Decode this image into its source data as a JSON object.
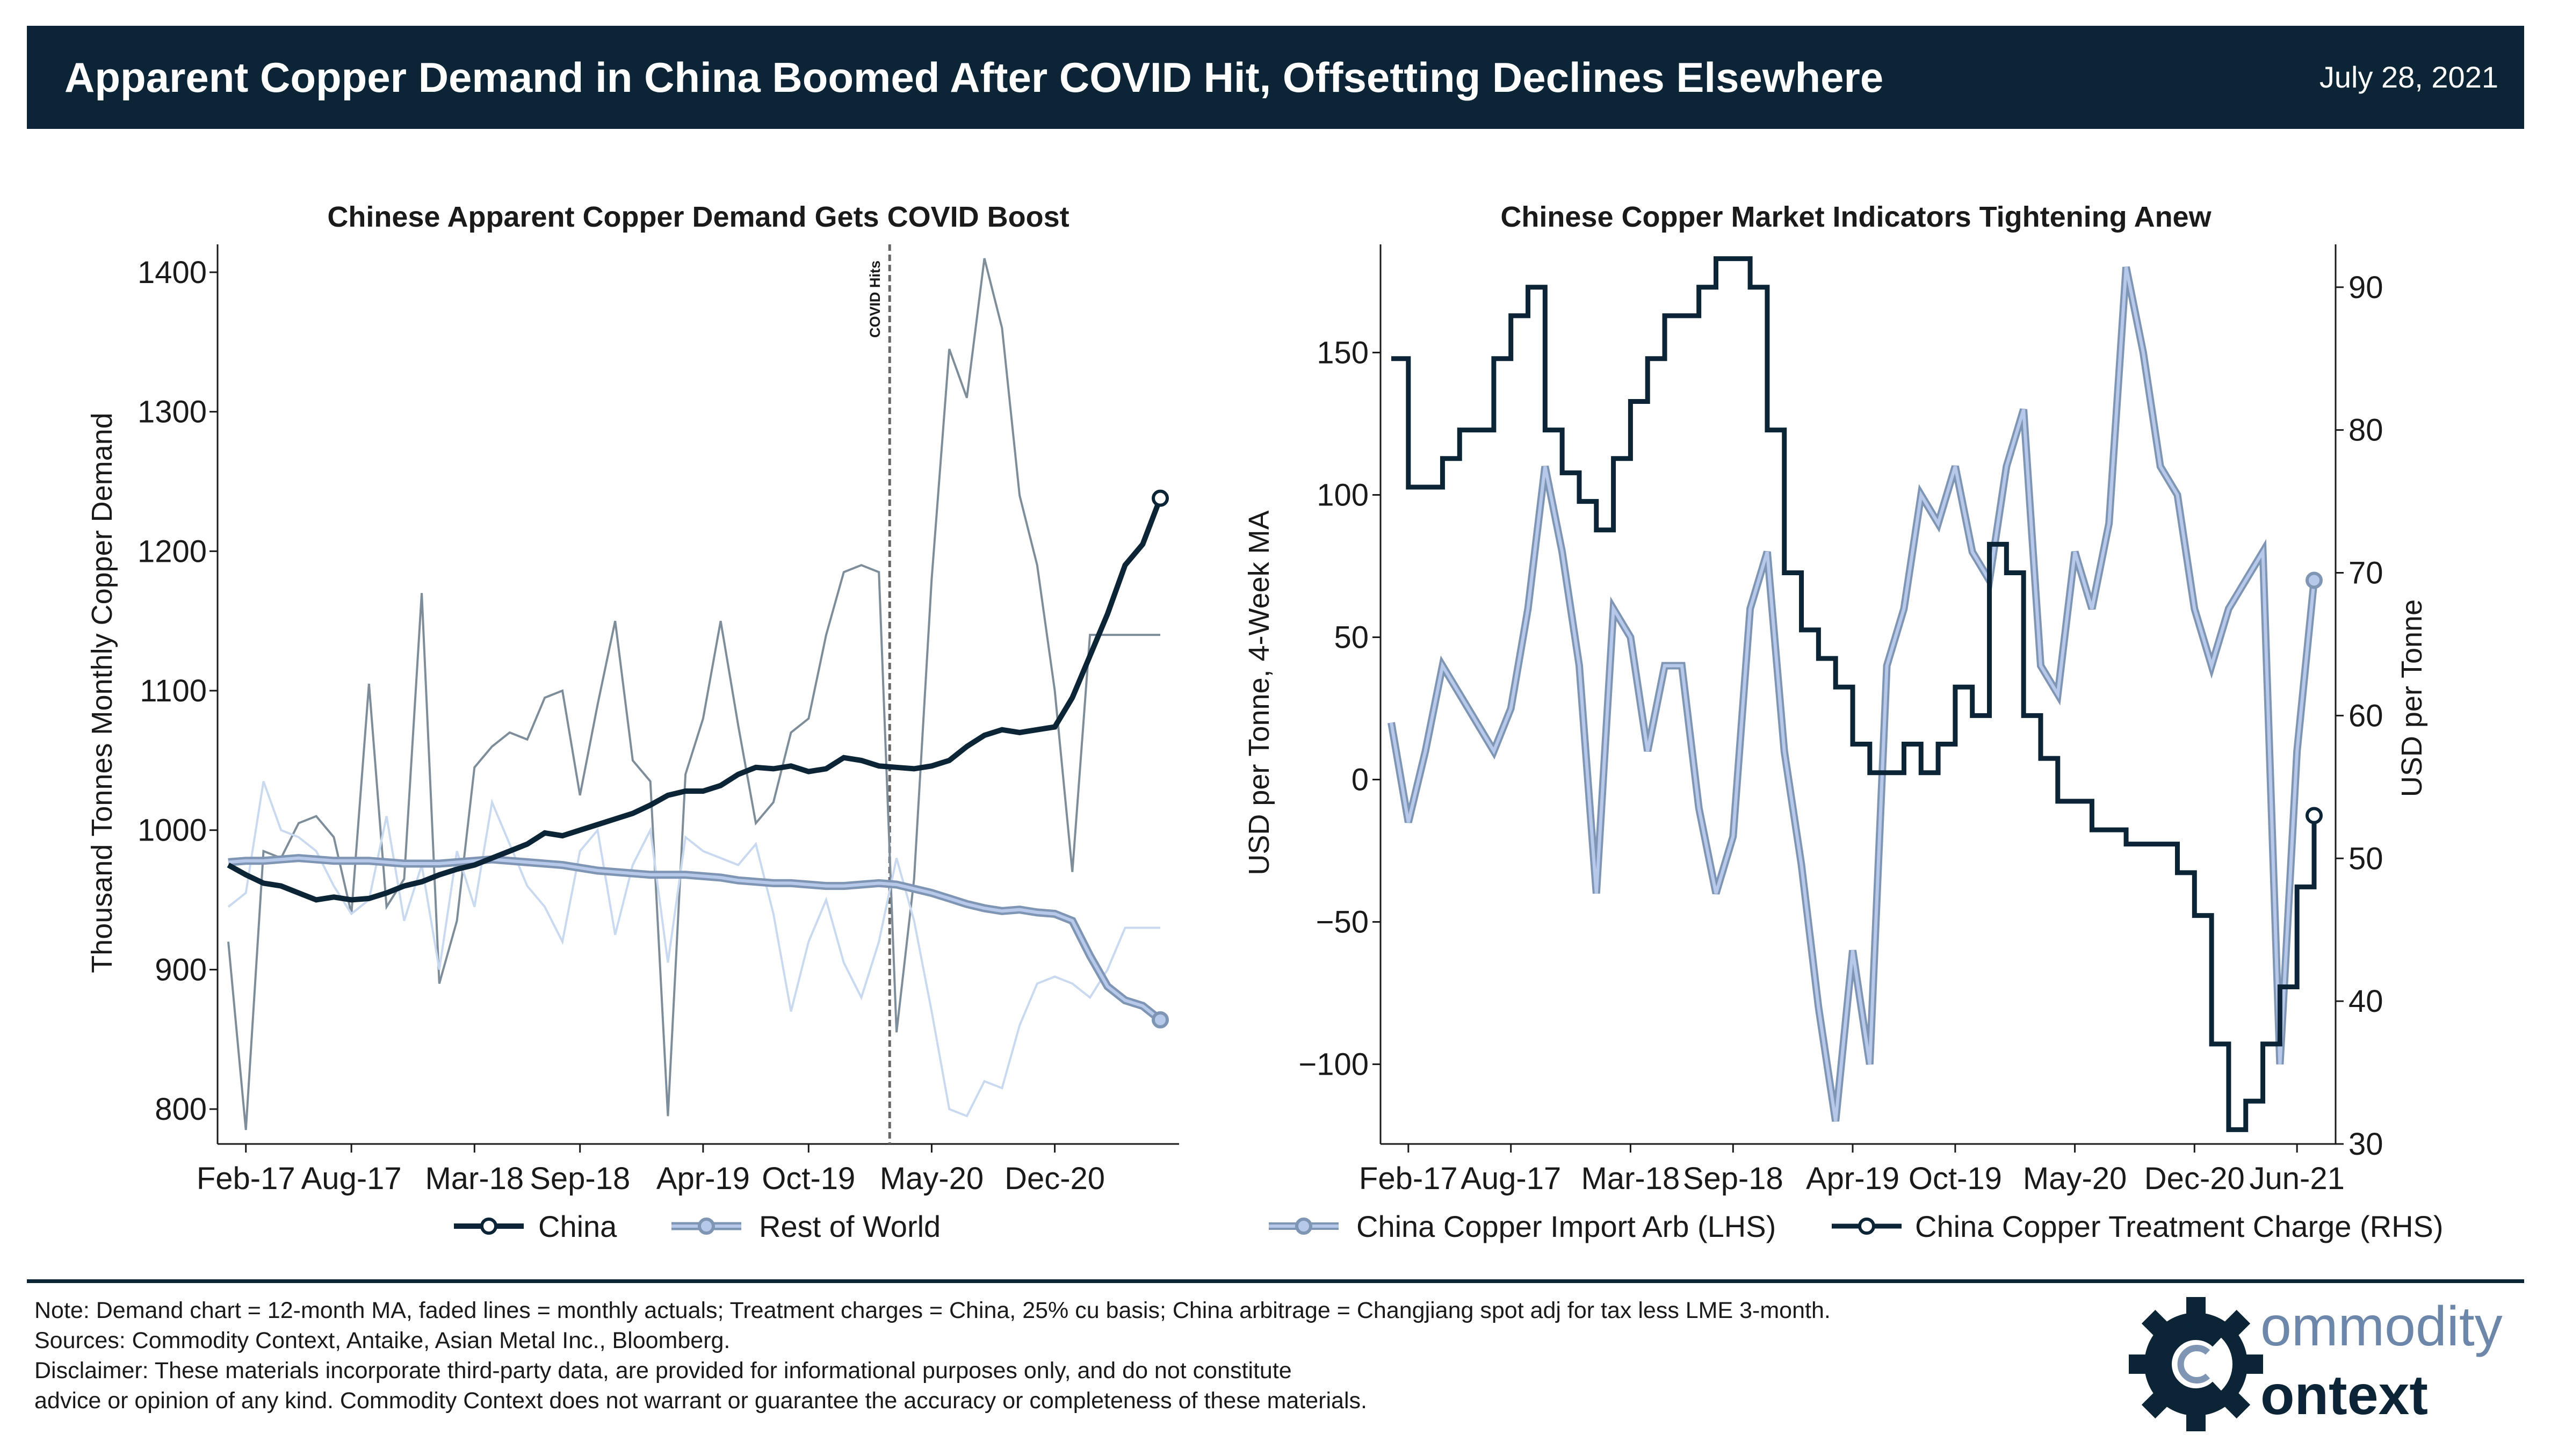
{
  "header": {
    "title": "Apparent Copper Demand in China Boomed After COVID Hit, Offsetting Declines Elsewhere",
    "date": "July 28, 2021"
  },
  "colors": {
    "banner": "#0b2536",
    "china": "#0b2536",
    "row": "#7f95b4",
    "row_fill": "#b7c9ea",
    "china_monthly": "#7d8d99",
    "row_monthly": "#c9d9f0"
  },
  "chart_data": [
    {
      "type": "line",
      "title": "Chinese Apparent Copper Demand Gets COVID Boost",
      "ylabel": "Thousand Tonnes Monthly Copper Demand",
      "xlabel": "",
      "ylim": [
        775,
        1420
      ],
      "yticks": [
        800,
        900,
        1000,
        1100,
        1200,
        1300,
        1400
      ],
      "xtick_labels": [
        "Feb-17",
        "Aug-17",
        "Mar-18",
        "Sep-18",
        "Apr-19",
        "Oct-19",
        "May-20",
        "Dec-20"
      ],
      "x_start": "2017-01",
      "n_months": 54,
      "annotation": {
        "label": "COVID Hits",
        "x": "2020-02"
      },
      "legend": "bottom",
      "series": [
        {
          "name": "China",
          "style": "12-month MA",
          "values": [
            975,
            968,
            962,
            960,
            955,
            950,
            952,
            950,
            951,
            955,
            960,
            963,
            968,
            972,
            975,
            980,
            985,
            990,
            998,
            996,
            1000,
            1004,
            1008,
            1012,
            1018,
            1025,
            1028,
            1028,
            1032,
            1040,
            1045,
            1044,
            1046,
            1042,
            1044,
            1052,
            1050,
            1046,
            1045,
            1044,
            1046,
            1050,
            1060,
            1068,
            1072,
            1070,
            1072,
            1074,
            1095,
            1125,
            1155,
            1190,
            1205,
            1238
          ]
        },
        {
          "name": "Rest of World",
          "style": "12-month MA",
          "values": [
            977,
            978,
            978,
            979,
            980,
            979,
            978,
            978,
            978,
            977,
            976,
            976,
            976,
            977,
            978,
            979,
            978,
            977,
            976,
            975,
            973,
            971,
            970,
            969,
            968,
            968,
            968,
            967,
            966,
            964,
            963,
            962,
            962,
            961,
            960,
            960,
            961,
            962,
            961,
            958,
            955,
            951,
            947,
            944,
            942,
            943,
            941,
            940,
            935,
            910,
            888,
            878,
            874,
            864
          ]
        },
        {
          "name": "",
          "style": "China monthly actuals",
          "values": [
            920,
            785,
            985,
            980,
            1005,
            1010,
            995,
            940,
            1105,
            945,
            965,
            1170,
            890,
            935,
            1045,
            1060,
            1070,
            1065,
            1095,
            1100,
            1025,
            1090,
            1150,
            1050,
            1035,
            795,
            1040,
            1080,
            1150,
            1075,
            1005,
            1020,
            1070,
            1080,
            1140,
            1185,
            1190,
            1185,
            855,
            965,
            1180,
            1345,
            1310,
            1410,
            1360,
            1240,
            1190,
            1100,
            970,
            1140,
            1140,
            1140,
            1140,
            1140
          ]
        },
        {
          "name": "",
          "style": "Rest of World monthly actuals",
          "values": [
            945,
            955,
            1035,
            1000,
            995,
            985,
            960,
            940,
            950,
            1010,
            935,
            975,
            900,
            985,
            945,
            1020,
            990,
            960,
            945,
            920,
            985,
            1000,
            925,
            975,
            1000,
            905,
            995,
            985,
            980,
            975,
            990,
            940,
            870,
            920,
            950,
            905,
            880,
            920,
            980,
            935,
            870,
            800,
            795,
            820,
            815,
            860,
            890,
            895,
            890,
            880,
            900,
            930,
            930,
            930
          ]
        }
      ]
    },
    {
      "type": "line",
      "title": "Chinese Copper Market Indicators Tightening Anew",
      "ylabel": "USD per Tonne, 4-Week MA",
      "y2label": "USD per Tonne",
      "ylim": [
        -128,
        188
      ],
      "yticks": [
        -100,
        -50,
        0,
        50,
        100,
        150
      ],
      "y2lim": [
        30,
        93
      ],
      "y2ticks": [
        30,
        40,
        50,
        60,
        70,
        80,
        90
      ],
      "xtick_labels": [
        "Feb-17",
        "Aug-17",
        "Mar-18",
        "Sep-18",
        "Apr-19",
        "Oct-19",
        "May-20",
        "Dec-20",
        "Jun-21"
      ],
      "legend": "bottom",
      "series": [
        {
          "name": "China Copper Import Arb (LHS)",
          "axis": "left",
          "x": [
            "2017-01",
            "2017-02",
            "2017-03",
            "2017-04",
            "2017-05",
            "2017-06",
            "2017-07",
            "2017-08",
            "2017-09",
            "2017-10",
            "2017-11",
            "2017-12",
            "2018-01",
            "2018-02",
            "2018-03",
            "2018-04",
            "2018-05",
            "2018-06",
            "2018-07",
            "2018-08",
            "2018-09",
            "2018-10",
            "2018-11",
            "2018-12",
            "2019-01",
            "2019-02",
            "2019-03",
            "2019-04",
            "2019-05",
            "2019-06",
            "2019-07",
            "2019-08",
            "2019-09",
            "2019-10",
            "2019-11",
            "2019-12",
            "2020-01",
            "2020-02",
            "2020-03",
            "2020-04",
            "2020-05",
            "2020-06",
            "2020-07",
            "2020-08",
            "2020-09",
            "2020-10",
            "2020-11",
            "2020-12",
            "2021-01",
            "2021-02",
            "2021-03",
            "2021-04",
            "2021-05",
            "2021-06",
            "2021-07"
          ],
          "values": [
            20,
            -15,
            10,
            40,
            30,
            20,
            10,
            25,
            60,
            110,
            80,
            40,
            -40,
            60,
            50,
            10,
            40,
            40,
            -10,
            -40,
            -20,
            60,
            80,
            10,
            -30,
            -80,
            -120,
            -60,
            -100,
            40,
            60,
            100,
            90,
            110,
            80,
            70,
            110,
            130,
            40,
            30,
            80,
            60,
            90,
            180,
            150,
            110,
            100,
            60,
            40,
            60,
            70,
            80,
            -100,
            10,
            70
          ]
        },
        {
          "name": "China Copper Treatment Charge (RHS)",
          "axis": "right",
          "x": [
            "2017-01",
            "2017-02",
            "2017-03",
            "2017-04",
            "2017-05",
            "2017-06",
            "2017-07",
            "2017-08",
            "2017-09",
            "2017-10",
            "2017-11",
            "2017-12",
            "2018-01",
            "2018-02",
            "2018-03",
            "2018-04",
            "2018-05",
            "2018-06",
            "2018-07",
            "2018-08",
            "2018-09",
            "2018-10",
            "2018-11",
            "2018-12",
            "2019-01",
            "2019-02",
            "2019-03",
            "2019-04",
            "2019-05",
            "2019-06",
            "2019-07",
            "2019-08",
            "2019-09",
            "2019-10",
            "2019-11",
            "2019-12",
            "2020-01",
            "2020-02",
            "2020-03",
            "2020-04",
            "2020-05",
            "2020-06",
            "2020-07",
            "2020-08",
            "2020-09",
            "2020-10",
            "2020-11",
            "2020-12",
            "2021-01",
            "2021-02",
            "2021-03",
            "2021-04",
            "2021-05",
            "2021-06",
            "2021-07"
          ],
          "values": [
            85,
            76,
            76,
            78,
            80,
            80,
            85,
            88,
            90,
            80,
            77,
            75,
            73,
            78,
            82,
            85,
            88,
            88,
            90,
            92,
            92,
            90,
            80,
            70,
            66,
            64,
            62,
            58,
            56,
            56,
            58,
            56,
            58,
            62,
            60,
            72,
            70,
            60,
            57,
            54,
            54,
            52,
            52,
            51,
            51,
            51,
            49,
            46,
            37,
            31,
            33,
            37,
            41,
            48,
            53
          ]
        }
      ]
    }
  ],
  "footer": {
    "note": "Note: Demand chart = 12-month MA, faded lines = monthly actuals; Treatment charges = China, 25% cu basis; China arbitrage = Changjiang spot adj for tax less LME 3-month.",
    "sources": "Sources: Commodity Context, Antaike, Asian Metal Inc., Bloomberg.",
    "disclaimer_1": "Disclaimer: These materials incorporate third-party data, are provided for informational purposes only, and do not constitute",
    "disclaimer_2": "advice or opinion of any kind. Commodity Context does not warrant or guarantee the accuracy or completeness of these materials.",
    "logo_line_1": "ommodity",
    "logo_line_2": "ontext"
  }
}
